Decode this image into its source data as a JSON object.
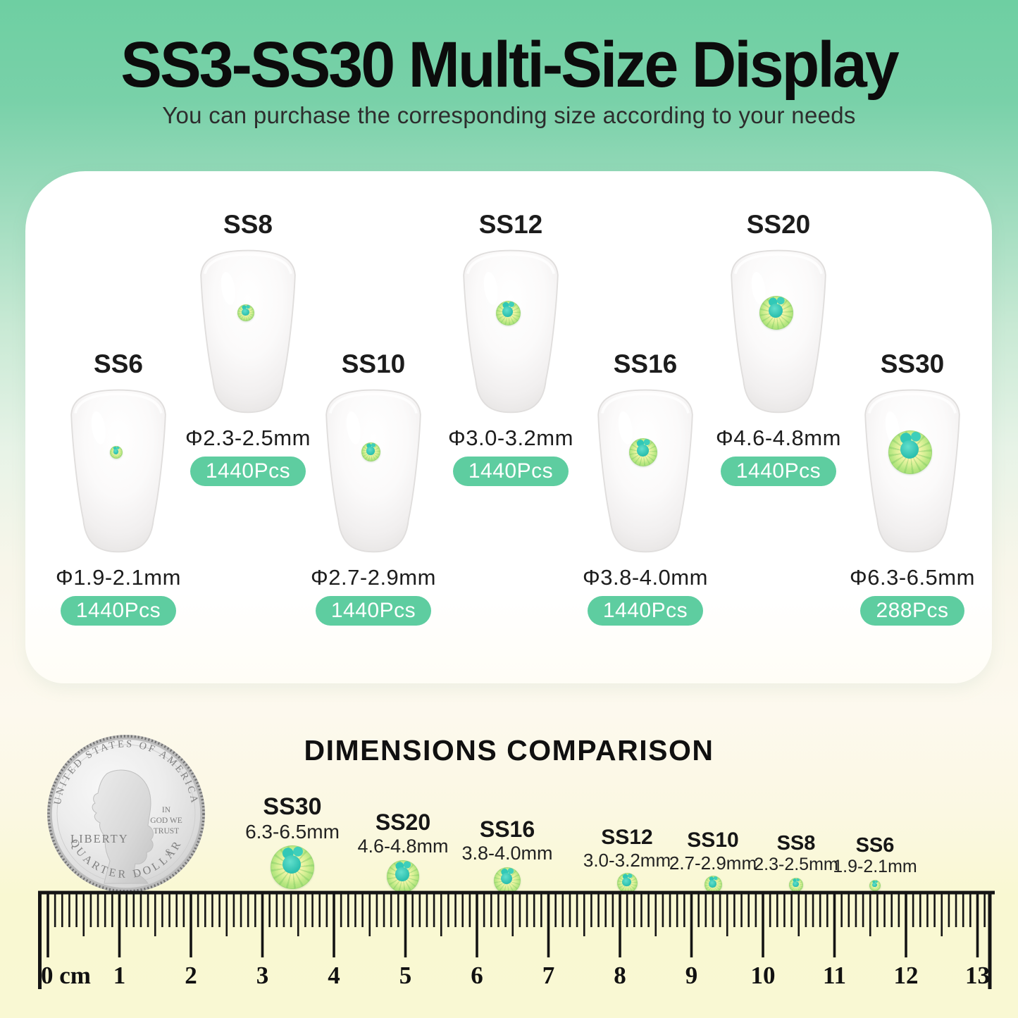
{
  "header": {
    "title": "SS3-SS30 Multi-Size Display",
    "subtitle": "You can purchase the corresponding size according to your needs"
  },
  "display_items": [
    {
      "label": "SS6",
      "size": "Φ1.9-2.1mm",
      "qty": "1440Pcs"
    },
    {
      "label": "SS8",
      "size": "Φ2.3-2.5mm",
      "qty": "1440Pcs"
    },
    {
      "label": "SS10",
      "size": "Φ2.7-2.9mm",
      "qty": "1440Pcs"
    },
    {
      "label": "SS12",
      "size": "Φ3.0-3.2mm",
      "qty": "1440Pcs"
    },
    {
      "label": "SS16",
      "size": "Φ3.8-4.0mm",
      "qty": "1440Pcs"
    },
    {
      "label": "SS20",
      "size": "Φ4.6-4.8mm",
      "qty": "1440Pcs"
    },
    {
      "label": "SS30",
      "size": "Φ6.3-6.5mm",
      "qty": "288Pcs"
    }
  ],
  "comparison": {
    "title": "DIMENSIONS COMPARISON",
    "coin": {
      "top_text": "UNITED STATES OF AMERICA",
      "left_text": "LIBERTY",
      "trust_lines": [
        "IN",
        "GOD WE",
        "TRUST"
      ],
      "mint_mark": "S",
      "bottom_text": "QUARTER DOLLAR"
    },
    "items": [
      {
        "label": "SS30",
        "size": "6.3-6.5mm"
      },
      {
        "label": "SS20",
        "size": "4.6-4.8mm"
      },
      {
        "label": "SS16",
        "size": "3.8-4.0mm"
      },
      {
        "label": "SS12",
        "size": "3.0-3.2mm"
      },
      {
        "label": "SS10",
        "size": "2.7-2.9mm"
      },
      {
        "label": "SS8",
        "size": "2.3-2.5mm"
      },
      {
        "label": "SS6",
        "size": "1.9-2.1mm"
      }
    ],
    "ruler": {
      "zero_label": "0 cm",
      "numbers": [
        "1",
        "2",
        "3",
        "4",
        "5",
        "6",
        "7",
        "8",
        "9",
        "10",
        "11",
        "12",
        "13"
      ]
    }
  },
  "palette": {
    "top_green": "#6ecfa2",
    "badge_green": "#5ecda0",
    "ruler_cream": "#f9f8d2",
    "stone_green": "#b2e47e",
    "stone_teal": "#2fc3b2"
  }
}
